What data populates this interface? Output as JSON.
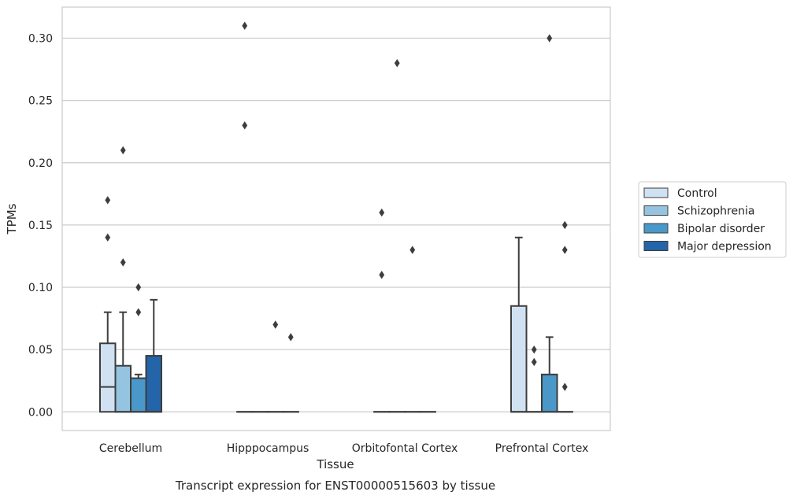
{
  "chart_data": {
    "type": "box",
    "title": "",
    "caption": "Transcript expression for ENST00000515603 by tissue",
    "xlabel": "Tissue",
    "ylabel": "TPMs",
    "ylim": [
      -0.015,
      0.325
    ],
    "yticks": [
      "0.00",
      "0.05",
      "0.10",
      "0.15",
      "0.20",
      "0.25",
      "0.30"
    ],
    "grid": true,
    "legend_position": "right",
    "categories": [
      "Cerebellum",
      "Hipppocampus",
      "Orbitofontal Cortex",
      "Prefrontal Cortex"
    ],
    "series": [
      {
        "name": "Control",
        "color": "#d0e1f2",
        "boxes": [
          {
            "q1": 0.0,
            "median": 0.02,
            "q3": 0.055,
            "whisker_low": 0.0,
            "whisker_high": 0.08,
            "outliers": [
              0.14,
              0.17
            ]
          },
          {
            "q1": 0.0,
            "median": 0.0,
            "q3": 0.0,
            "whisker_low": 0.0,
            "whisker_high": 0.0,
            "outliers": [
              0.23,
              0.31
            ]
          },
          {
            "q1": 0.0,
            "median": 0.0,
            "q3": 0.0,
            "whisker_low": 0.0,
            "whisker_high": 0.0,
            "outliers": [
              0.11,
              0.16
            ]
          },
          {
            "q1": 0.0,
            "median": 0.0,
            "q3": 0.085,
            "whisker_low": 0.0,
            "whisker_high": 0.14,
            "outliers": []
          }
        ]
      },
      {
        "name": "Schizophrenia",
        "color": "#94c4df",
        "boxes": [
          {
            "q1": 0.0,
            "median": 0.0,
            "q3": 0.037,
            "whisker_low": 0.0,
            "whisker_high": 0.08,
            "outliers": [
              0.12,
              0.21
            ]
          },
          {
            "q1": 0.0,
            "median": 0.0,
            "q3": 0.0,
            "whisker_low": 0.0,
            "whisker_high": 0.0,
            "outliers": []
          },
          {
            "q1": 0.0,
            "median": 0.0,
            "q3": 0.0,
            "whisker_low": 0.0,
            "whisker_high": 0.0,
            "outliers": [
              0.28
            ]
          },
          {
            "q1": 0.0,
            "median": 0.0,
            "q3": 0.0,
            "whisker_low": 0.0,
            "whisker_high": 0.0,
            "outliers": [
              0.04,
              0.05
            ]
          }
        ]
      },
      {
        "name": "Bipolar disorder",
        "color": "#4a98c9",
        "boxes": [
          {
            "q1": 0.0,
            "median": 0.0,
            "q3": 0.027,
            "whisker_low": 0.0,
            "whisker_high": 0.03,
            "outliers": [
              0.08,
              0.1
            ]
          },
          {
            "q1": 0.0,
            "median": 0.0,
            "q3": 0.0,
            "whisker_low": 0.0,
            "whisker_high": 0.0,
            "outliers": [
              0.07
            ]
          },
          {
            "q1": 0.0,
            "median": 0.0,
            "q3": 0.0,
            "whisker_low": 0.0,
            "whisker_high": 0.0,
            "outliers": [
              0.13
            ]
          },
          {
            "q1": 0.0,
            "median": 0.0,
            "q3": 0.03,
            "whisker_low": 0.0,
            "whisker_high": 0.06,
            "outliers": [
              0.3
            ]
          }
        ]
      },
      {
        "name": "Major depression",
        "color": "#2464a8",
        "boxes": [
          {
            "q1": 0.0,
            "median": 0.0,
            "q3": 0.045,
            "whisker_low": 0.0,
            "whisker_high": 0.09,
            "outliers": []
          },
          {
            "q1": 0.0,
            "median": 0.0,
            "q3": 0.0,
            "whisker_low": 0.0,
            "whisker_high": 0.0,
            "outliers": [
              0.06
            ]
          },
          {
            "q1": 0.0,
            "median": 0.0,
            "q3": 0.0,
            "whisker_low": 0.0,
            "whisker_high": 0.0,
            "outliers": []
          },
          {
            "q1": 0.0,
            "median": 0.0,
            "q3": 0.0,
            "whisker_low": 0.0,
            "whisker_high": 0.0,
            "outliers": [
              0.02,
              0.13,
              0.15
            ]
          }
        ]
      }
    ],
    "colors": {
      "grid": "#cccccc",
      "frame": "#cccccc",
      "box_edge": "#3d3d3d",
      "outlier": "#3d3d3d",
      "text": "#262626",
      "legend_frame": "#cccccc"
    }
  }
}
